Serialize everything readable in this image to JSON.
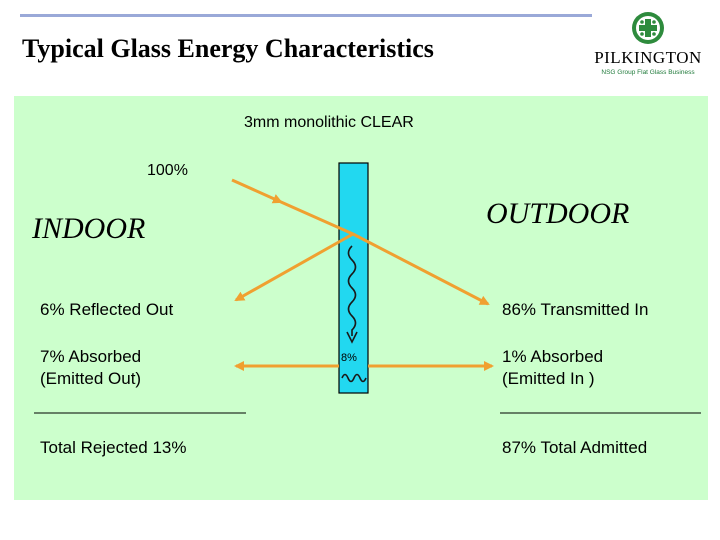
{
  "slide": {
    "title": "Typical Glass Energy Characteristics"
  },
  "logo": {
    "name": "PILKINGTON",
    "tagline": "NSG Group Flat Glass Business"
  },
  "diagram": {
    "glass_label": "3mm monolithic CLEAR",
    "incident": "100%",
    "indoor": "INDOOR",
    "outdoor": "OUTDOOR",
    "reflected": "6% Reflected Out",
    "transmitted": "86% Transmitted In",
    "absorbed_out_line1": "7% Absorbed",
    "absorbed_out_line2": "(Emitted Out)",
    "absorbed_in_line1": "1% Absorbed",
    "absorbed_in_line2": "(Emitted In )",
    "absorbed_total": "8%",
    "total_rejected": "Total Rejected 13%",
    "total_admitted": "87% Total Admitted",
    "colors": {
      "arrow": "#f0a030",
      "glass": "#22d8f0",
      "background": "#ccffcc",
      "wave": "#1a1a1a"
    }
  }
}
